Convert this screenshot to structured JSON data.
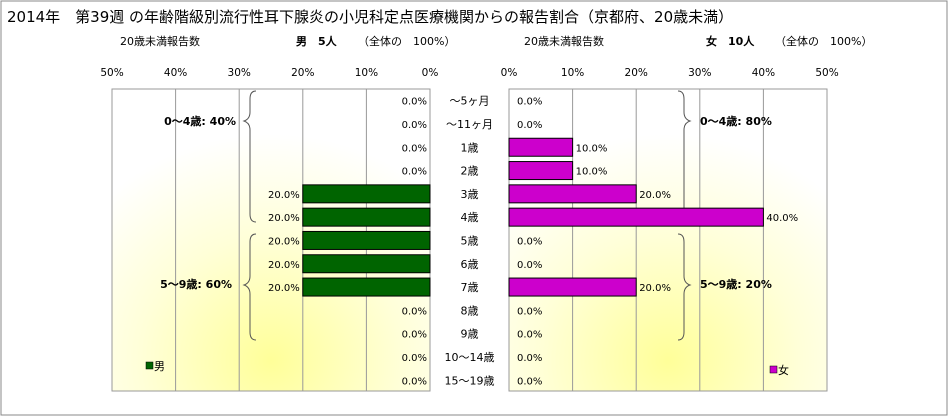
{
  "title": "2014年　第39週 の年齢階級別流行性耳下腺炎の小児科定点医療機関からの報告割合（京都府、20歳未満）",
  "header": {
    "left_caption": "20歳未満報告数",
    "left_total": "男　5人",
    "left_note": "（全体の　100%）",
    "right_caption": "20歳未満報告数",
    "right_total": "女　10人",
    "right_note": "（全体の　100%）"
  },
  "groups": {
    "male_0_4": "0～4歳: 40%",
    "male_5_9": "5～9歳: 60%",
    "female_0_4": "0～4歳: 80%",
    "female_5_9": "5～9歳: 20%"
  },
  "legend": {
    "male": "男",
    "female": "女"
  },
  "colors": {
    "male": "#006400",
    "female": "#cc00cc",
    "bg_top": "#ffffff",
    "bg_glow": "#ffff99"
  },
  "chart_data": {
    "type": "bar",
    "orientation": "horizontal",
    "layout": "population-pyramid",
    "categories": [
      "～5ヶ月",
      "～11ヶ月",
      "1歳",
      "2歳",
      "3歳",
      "4歳",
      "5歳",
      "6歳",
      "7歳",
      "8歳",
      "9歳",
      "10～14歳",
      "15～19歳"
    ],
    "series": [
      {
        "name": "男",
        "values": [
          0,
          0,
          0,
          0,
          20,
          20,
          20,
          20,
          20,
          0,
          0,
          0,
          0
        ]
      },
      {
        "name": "女",
        "values": [
          0,
          0,
          10,
          10,
          20,
          40,
          0,
          0,
          20,
          0,
          0,
          0,
          0
        ]
      }
    ],
    "value_labels": {
      "male": [
        "0.0%",
        "0.0%",
        "0.0%",
        "0.0%",
        "20.0%",
        "20.0%",
        "20.0%",
        "20.0%",
        "20.0%",
        "0.0%",
        "0.0%",
        "0.0%",
        "0.0%"
      ],
      "female": [
        "0.0%",
        "0.0%",
        "10.0%",
        "10.0%",
        "20.0%",
        "40.0%",
        "0.0%",
        "0.0%",
        "20.0%",
        "0.0%",
        "0.0%",
        "0.0%",
        "0.0%"
      ]
    },
    "xticks": [
      "50%",
      "40%",
      "30%",
      "20%",
      "10%",
      "0%"
    ],
    "xlim": [
      0,
      50
    ],
    "grid": true,
    "legend_position": "bottom"
  }
}
